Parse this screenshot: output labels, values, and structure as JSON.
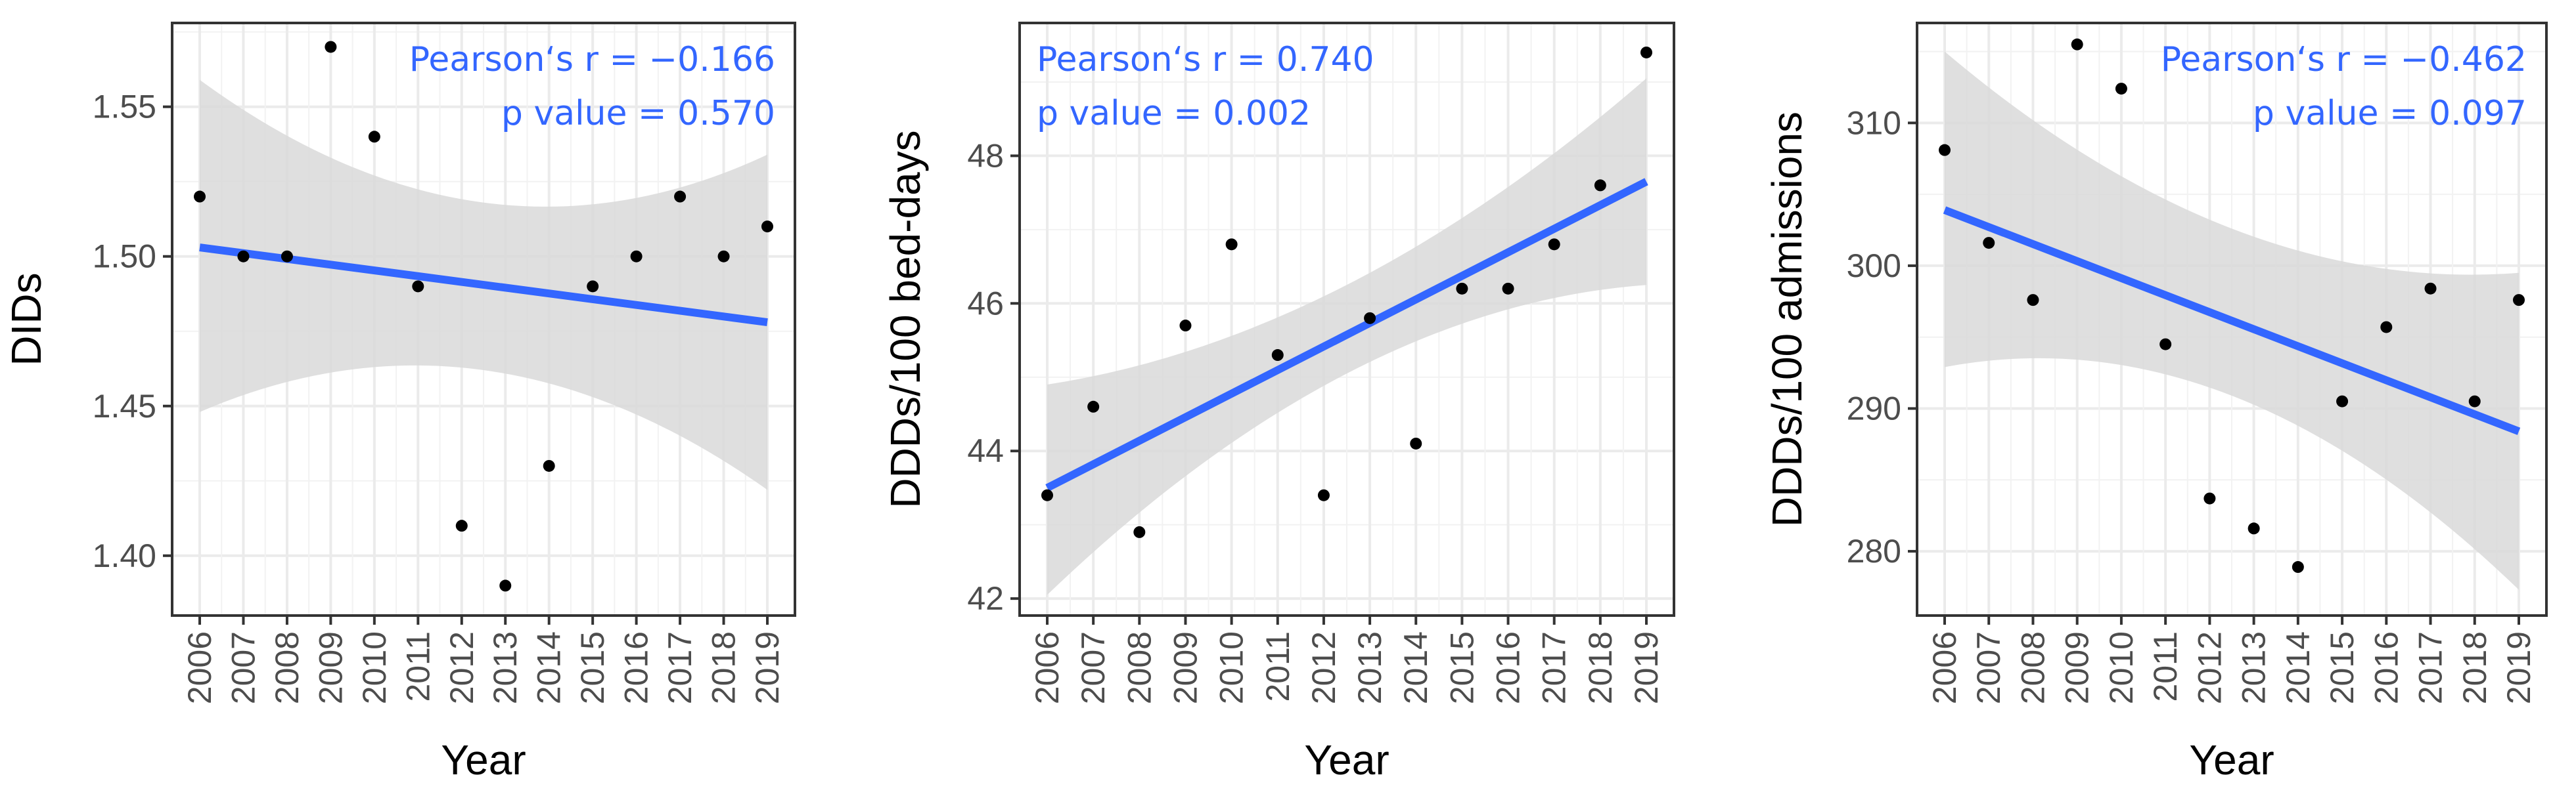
{
  "chart_data": [
    {
      "type": "scatter",
      "title": "",
      "xlabel": "Year",
      "ylabel": "DIDs",
      "categories": [
        "2006",
        "2007",
        "2008",
        "2009",
        "2010",
        "2011",
        "2012",
        "2013",
        "2014",
        "2015",
        "2016",
        "2017",
        "2018",
        "2019"
      ],
      "x": [
        2006,
        2007,
        2008,
        2009,
        2010,
        2011,
        2012,
        2013,
        2014,
        2015,
        2016,
        2017,
        2018,
        2019
      ],
      "values": [
        1.52,
        1.5,
        1.5,
        1.57,
        1.54,
        1.49,
        1.41,
        1.39,
        1.43,
        1.49,
        1.5,
        1.52,
        1.5,
        1.51
      ],
      "ylim": [
        1.38,
        1.578
      ],
      "yticks": [
        1.4,
        1.45,
        1.5,
        1.55
      ],
      "ytick_labels": [
        "1.40",
        "1.45",
        "1.50",
        "1.55"
      ],
      "fit": {
        "start": 1.503,
        "end": 1.478,
        "ci_start": [
          1.448,
          1.559
        ],
        "ci_mid": [
          1.462,
          1.518
        ],
        "ci_end": [
          1.422,
          1.534
        ]
      },
      "annotation": [
        "Pearson‘s r = −0.166",
        "p value = 0.570"
      ],
      "annotation_align": "top-right",
      "grid": true
    },
    {
      "type": "scatter",
      "title": "",
      "xlabel": "Year",
      "ylabel": "DDDs/100 bed-days",
      "categories": [
        "2006",
        "2007",
        "2008",
        "2009",
        "2010",
        "2011",
        "2012",
        "2013",
        "2014",
        "2015",
        "2016",
        "2017",
        "2018",
        "2019"
      ],
      "x": [
        2006,
        2007,
        2008,
        2009,
        2010,
        2011,
        2012,
        2013,
        2014,
        2015,
        2016,
        2017,
        2018,
        2019
      ],
      "values": [
        43.4,
        44.6,
        42.9,
        45.7,
        46.8,
        45.3,
        43.4,
        45.8,
        44.1,
        46.2,
        46.2,
        46.8,
        47.6,
        49.4
      ],
      "ylim": [
        41.77,
        49.8
      ],
      "yticks": [
        42,
        44,
        46,
        48
      ],
      "ytick_labels": [
        "42",
        "44",
        "46",
        "48"
      ],
      "fit": {
        "start": 43.5,
        "end": 47.65,
        "ci_start": [
          42.05,
          44.9
        ],
        "ci_mid": [
          45.05,
          46.25
        ],
        "ci_end": [
          46.25,
          49.05
        ]
      },
      "annotation": [
        "Pearson‘s r = 0.740",
        "p value = 0.002"
      ],
      "annotation_align": "top-left",
      "grid": true
    },
    {
      "type": "scatter",
      "title": "",
      "xlabel": "Year",
      "ylabel": "DDDs/100 admissions",
      "categories": [
        "2006",
        "2007",
        "2008",
        "2009",
        "2010",
        "2011",
        "2012",
        "2013",
        "2014",
        "2015",
        "2016",
        "2017",
        "2018",
        "2019"
      ],
      "x": [
        2006,
        2007,
        2008,
        2009,
        2010,
        2011,
        2012,
        2013,
        2014,
        2015,
        2016,
        2017,
        2018,
        2019
      ],
      "values": [
        308.1,
        301.6,
        297.6,
        315.5,
        312.4,
        294.5,
        283.7,
        281.6,
        278.9,
        290.5,
        295.7,
        298.4,
        290.5,
        297.6
      ],
      "ylim": [
        275.5,
        317.0
      ],
      "yticks": [
        280,
        290,
        300,
        310
      ],
      "ytick_labels": [
        "280",
        "290",
        "300",
        "310"
      ],
      "fit": {
        "start": 303.9,
        "end": 288.4,
        "ci_start": [
          292.9,
          315.0
        ],
        "ci_mid": [
          290.9,
          302.6
        ],
        "ci_end": [
          277.3,
          299.5
        ]
      },
      "annotation": [
        "Pearson‘s r = −0.462",
        "p value = 0.097"
      ],
      "annotation_align": "top-right",
      "grid": true
    }
  ],
  "colors": {
    "fit_line": "#3366ff",
    "ci_band": "#d9d9d9",
    "points": "#000000",
    "annotation": "#3366ff",
    "grid": "#ebebeb",
    "axis_text": "#4d4d4d",
    "panel_border": "#333333"
  }
}
